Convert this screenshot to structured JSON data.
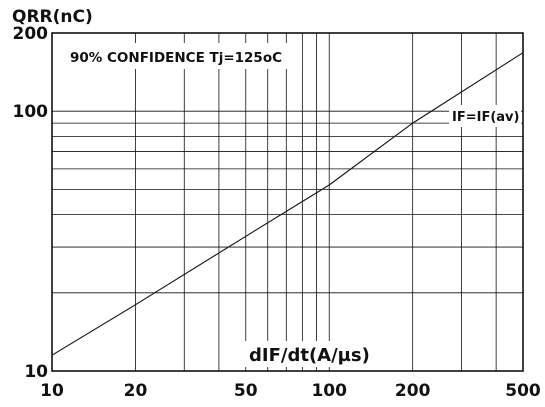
{
  "chart_data": {
    "type": "line",
    "title": "90% CONFIDENCE Tj=125oC",
    "xlabel": "dIF/dt(A/µs)",
    "ylabel": "QRR(nC)",
    "x_scale": "log",
    "y_scale": "log",
    "xlim": [
      10,
      500
    ],
    "ylim": [
      10,
      200
    ],
    "x_ticks": [
      10,
      20,
      50,
      100,
      200,
      500
    ],
    "x_tick_labels": [
      "10",
      "20",
      "50",
      "100",
      "200",
      "500"
    ],
    "y_ticks": [
      10,
      100,
      200
    ],
    "y_tick_labels": [
      "10",
      "100",
      "200"
    ],
    "grid": true,
    "series": [
      {
        "name": "IF=IF(av)",
        "x": [
          10,
          20,
          50,
          100,
          200,
          500
        ],
        "y": [
          11.5,
          18,
          33,
          52,
          90,
          168
        ]
      }
    ]
  }
}
